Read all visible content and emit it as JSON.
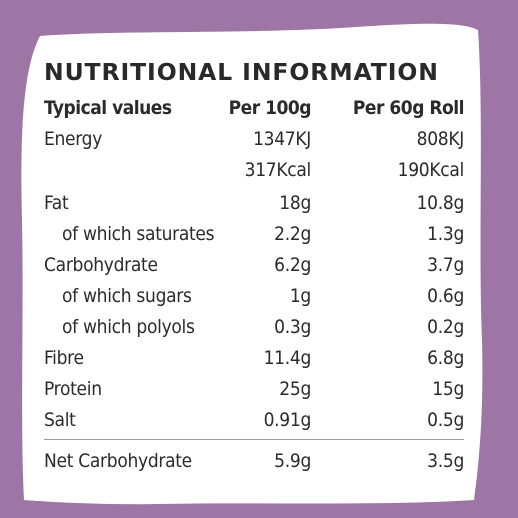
{
  "colors": {
    "background": "#9e76a6",
    "panel": "#ffffff",
    "text": "#2b2a2c"
  },
  "title": "NUTRITIONAL INFORMATION",
  "header": {
    "label": "Typical values",
    "col1": "Per 100g",
    "col2": "Per 60g Roll"
  },
  "rows": [
    {
      "label": "Energy",
      "col1": "1347KJ",
      "col2": "808KJ"
    },
    {
      "label": "",
      "col1": "317Kcal",
      "col2": "190Kcal"
    },
    {
      "label": "Fat",
      "col1": "18g",
      "col2": "10.8g"
    },
    {
      "label": "of which saturates",
      "col1": "2.2g",
      "col2": "1.3g"
    },
    {
      "label": "Carbohydrate",
      "col1": "6.2g",
      "col2": "3.7g"
    },
    {
      "label": "of which sugars",
      "col1": "1g",
      "col2": "0.6g"
    },
    {
      "label": "of which polyols",
      "col1": "0.3g",
      "col2": "0.2g"
    },
    {
      "label": "Fibre",
      "col1": "11.4g",
      "col2": "6.8g"
    },
    {
      "label": "Protein",
      "col1": "25g",
      "col2": "15g"
    },
    {
      "label": "Salt",
      "col1": "0.91g",
      "col2": "0.5g"
    }
  ],
  "footer": {
    "label": "Net Carbohydrate",
    "col1": "5.9g",
    "col2": "3.5g"
  }
}
